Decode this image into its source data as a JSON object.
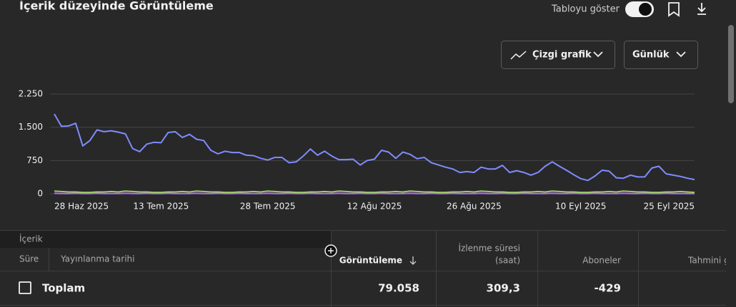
{
  "header": {
    "title": "İçerik düzeyinde Görüntüleme",
    "toggle_label": "Tabloyu göster",
    "chart_type_menu": "Çizgi grafik",
    "period_menu": "Günlük"
  },
  "chart_data": {
    "type": "line",
    "categories": [
      "28 Haz 2025",
      null,
      null,
      null,
      null,
      null,
      null,
      null,
      null,
      null,
      null,
      null,
      null,
      null,
      null,
      "13 Tem 2025",
      null,
      null,
      null,
      null,
      null,
      null,
      null,
      null,
      null,
      null,
      null,
      null,
      null,
      null,
      "28 Tem 2025",
      null,
      null,
      null,
      null,
      null,
      null,
      null,
      null,
      null,
      null,
      null,
      null,
      null,
      null,
      "12 Ağu 2025",
      null,
      null,
      null,
      null,
      null,
      null,
      null,
      null,
      null,
      null,
      null,
      null,
      null,
      "26 Ağu 2025",
      null,
      null,
      null,
      null,
      null,
      null,
      null,
      null,
      null,
      null,
      null,
      null,
      null,
      null,
      "10 Eyl 2025",
      null,
      null,
      null,
      null,
      null,
      null,
      null,
      null,
      null,
      null,
      null,
      null,
      null,
      null,
      "25 Eyl 2025",
      null
    ],
    "series": [
      {
        "color": "#7f8cff",
        "values": [
          1800,
          1520,
          1530,
          1590,
          1080,
          1200,
          1440,
          1400,
          1420,
          1390,
          1350,
          1020,
          950,
          1120,
          1160,
          1150,
          1380,
          1400,
          1270,
          1340,
          1230,
          1200,
          980,
          900,
          960,
          930,
          930,
          870,
          860,
          800,
          760,
          820,
          820,
          700,
          720,
          850,
          1010,
          870,
          960,
          850,
          770,
          770,
          780,
          650,
          750,
          780,
          980,
          940,
          800,
          940,
          890,
          790,
          820,
          700,
          650,
          600,
          560,
          480,
          500,
          480,
          600,
          560,
          560,
          640,
          480,
          520,
          480,
          420,
          480,
          620,
          720,
          620,
          530,
          430,
          340,
          300,
          400,
          530,
          510,
          360,
          350,
          420,
          380,
          380,
          580,
          620,
          450,
          420,
          390,
          350,
          320
        ]
      },
      {
        "color": "#9ccc65",
        "values": [
          60,
          50,
          40,
          40,
          30,
          30,
          40,
          40,
          50,
          40,
          60,
          50,
          40,
          40,
          30,
          30,
          40,
          40,
          50,
          40,
          60,
          50,
          40,
          40,
          30,
          30,
          40,
          40,
          50,
          40,
          60,
          50,
          40,
          40,
          30,
          30,
          40,
          40,
          50,
          40,
          60,
          50,
          40,
          40,
          30,
          30,
          40,
          40,
          50,
          40,
          60,
          50,
          40,
          40,
          30,
          30,
          40,
          40,
          50,
          40,
          60,
          50,
          40,
          40,
          30,
          30,
          40,
          40,
          50,
          40,
          60,
          50,
          40,
          40,
          30,
          30,
          40,
          40,
          50,
          40,
          60,
          50,
          40,
          40,
          30,
          30,
          40,
          40,
          50,
          40,
          30
        ]
      },
      {
        "color": "#b86bff",
        "values": [
          10,
          5,
          5,
          10,
          5,
          5,
          10,
          5,
          5,
          5,
          10,
          5,
          5,
          10,
          5,
          5,
          10,
          5,
          5,
          5,
          10,
          5,
          5,
          10,
          5,
          5,
          10,
          5,
          5,
          5,
          10,
          5,
          5,
          10,
          5,
          5,
          10,
          5,
          5,
          5,
          10,
          5,
          5,
          10,
          5,
          5,
          10,
          5,
          5,
          5,
          10,
          5,
          5,
          10,
          5,
          5,
          10,
          5,
          5,
          5,
          10,
          5,
          5,
          10,
          5,
          5,
          10,
          5,
          5,
          5,
          10,
          5,
          5,
          10,
          5,
          5,
          10,
          5,
          5,
          5,
          10,
          5,
          5,
          10,
          5,
          5,
          10,
          5,
          5,
          5,
          5
        ]
      }
    ],
    "ylim": [
      0,
      2250
    ],
    "yticks": [
      0,
      750,
      {
        "value": 1500,
        "label": "1.500"
      },
      {
        "value": 2250,
        "label": "2.250"
      }
    ],
    "grid": true
  },
  "table": {
    "section": "İçerik",
    "columns": [
      "Süre",
      "Yayınlanma tarihi",
      "Görüntüleme",
      [
        "İzlenme süresi",
        "(saat)"
      ],
      "Aboneler",
      "Tahmini g"
    ],
    "total": {
      "label": "Toplam",
      "values": [
        "79.058",
        "309,3",
        "-429"
      ]
    }
  }
}
